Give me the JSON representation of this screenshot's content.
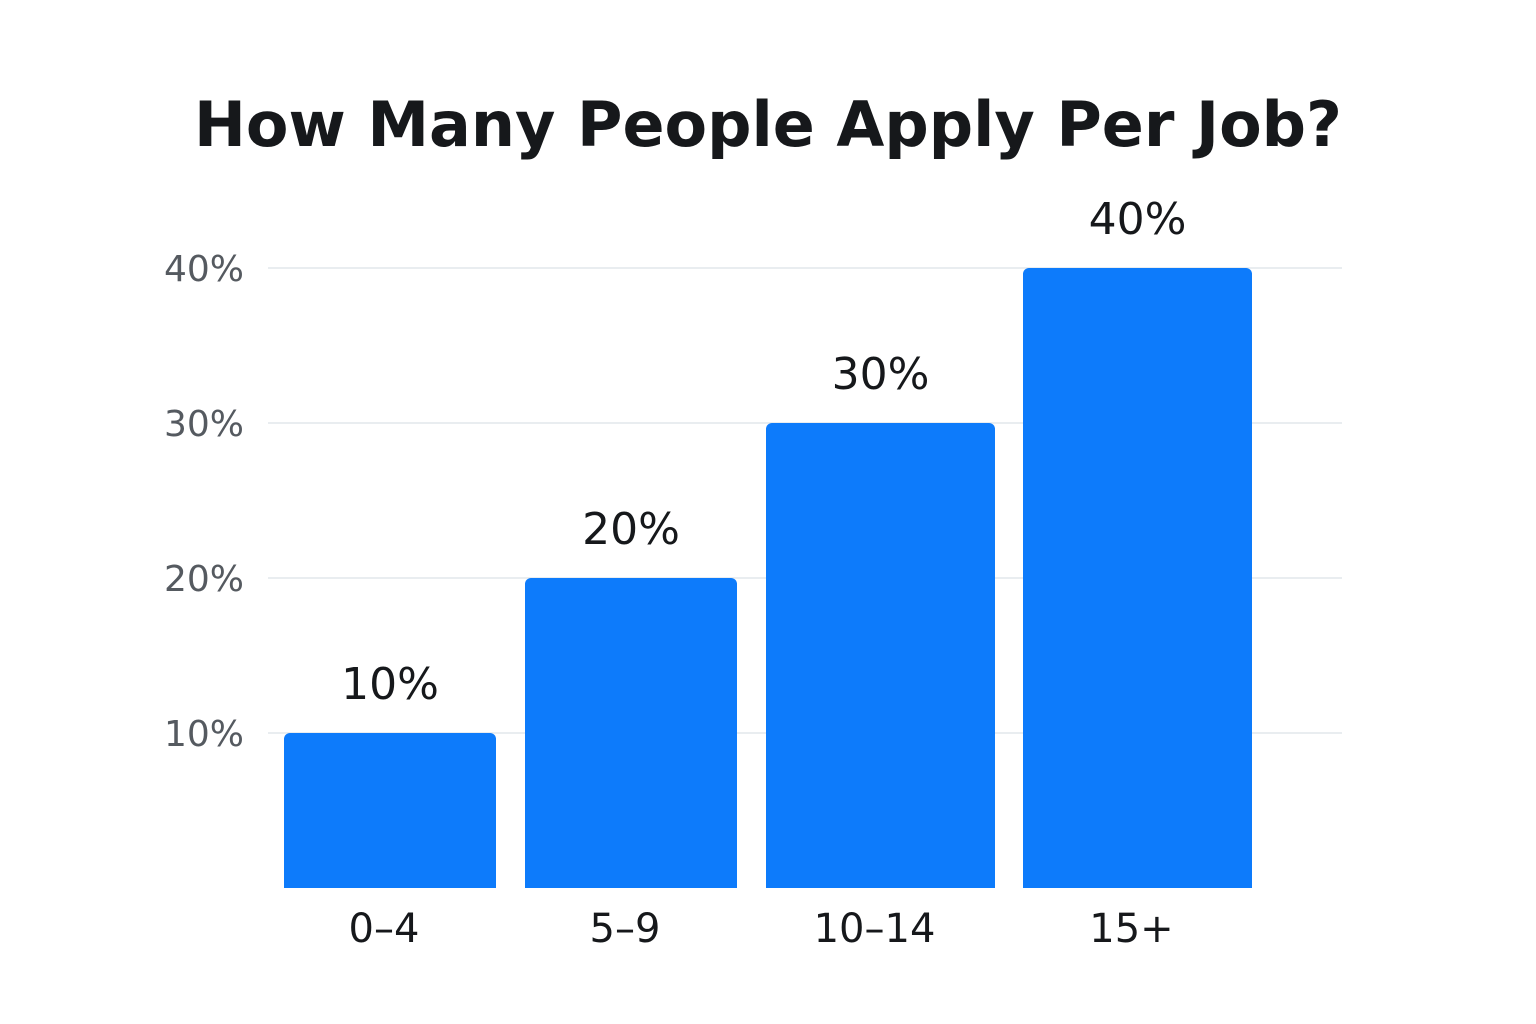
{
  "chart_data": {
    "type": "bar",
    "title": "How Many People Apply Per Job?",
    "xlabel": "",
    "ylabel": "",
    "categories": [
      "0–4",
      "5–9",
      "10–14",
      "15+"
    ],
    "values": [
      10,
      20,
      30,
      40
    ],
    "data_labels": [
      "10%",
      "20%",
      "30%",
      "40%"
    ],
    "y_ticks": [
      10,
      20,
      30,
      40
    ],
    "y_tick_labels": [
      "10%",
      "20%",
      "30%",
      "40%"
    ],
    "ylim": [
      0,
      40
    ],
    "grid": true,
    "legend": "none",
    "colors": {
      "bar": "#0d7bfb",
      "grid": "#e9edf0",
      "text": "#16181b",
      "tick_text": "#555a60"
    }
  }
}
